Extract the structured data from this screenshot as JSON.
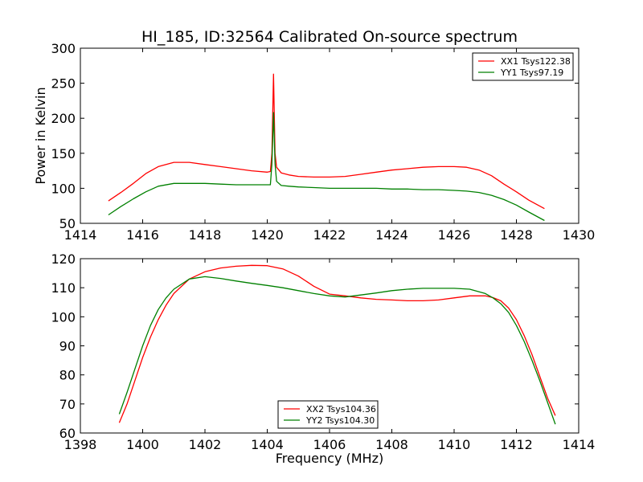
{
  "figure": {
    "title": "HI_185, ID:32564 Calibrated On-source spectrum",
    "xlabel": "Frequency (MHz)"
  },
  "chart_data": [
    {
      "type": "line",
      "title": "HI_185, ID:32564 Calibrated On-source spectrum",
      "xlabel": "",
      "ylabel": "Power in Kelvin",
      "xlim": [
        1414,
        1430
      ],
      "ylim": [
        50,
        300
      ],
      "xticks": [
        1414,
        1416,
        1418,
        1420,
        1422,
        1424,
        1426,
        1428,
        1430
      ],
      "yticks": [
        50,
        100,
        150,
        200,
        250,
        300
      ],
      "grid": false,
      "legend_position": "top-right",
      "series": [
        {
          "name": "XX1 Tsys122.38",
          "color": "#ff0000",
          "x": [
            1414.9,
            1415.3,
            1415.7,
            1416.1,
            1416.5,
            1417.0,
            1417.5,
            1418.0,
            1418.5,
            1419.0,
            1419.5,
            1420.0,
            1420.1,
            1420.15,
            1420.2,
            1420.25,
            1420.3,
            1420.45,
            1420.7,
            1421.0,
            1421.5,
            1422.0,
            1422.5,
            1423.0,
            1423.5,
            1424.0,
            1424.5,
            1425.0,
            1425.5,
            1426.0,
            1426.4,
            1426.8,
            1427.2,
            1427.6,
            1428.0,
            1428.4,
            1428.9
          ],
          "y": [
            82,
            94,
            107,
            121,
            131,
            137,
            137,
            134,
            131,
            128,
            125,
            123,
            124,
            150,
            263,
            150,
            130,
            122,
            119,
            117,
            116,
            116,
            117,
            120,
            123,
            126,
            128,
            130,
            131,
            131,
            130,
            126,
            118,
            106,
            95,
            83,
            71
          ]
        },
        {
          "name": "YY1 Tsys97.19",
          "color": "#008000",
          "x": [
            1414.9,
            1415.3,
            1415.7,
            1416.1,
            1416.5,
            1417.0,
            1417.5,
            1418.0,
            1418.5,
            1419.0,
            1419.5,
            1420.0,
            1420.1,
            1420.15,
            1420.2,
            1420.25,
            1420.3,
            1420.45,
            1420.7,
            1421.0,
            1421.5,
            1422.0,
            1422.5,
            1423.0,
            1423.5,
            1424.0,
            1424.5,
            1425.0,
            1425.5,
            1426.0,
            1426.4,
            1426.8,
            1427.2,
            1427.6,
            1428.0,
            1428.4,
            1428.9
          ],
          "y": [
            62,
            74,
            85,
            95,
            103,
            107,
            107,
            107,
            106,
            105,
            105,
            105,
            105,
            135,
            208,
            135,
            110,
            104,
            103,
            102,
            101,
            100,
            100,
            100,
            100,
            99,
            99,
            98,
            98,
            97,
            96,
            94,
            90,
            84,
            76,
            66,
            54
          ]
        }
      ]
    },
    {
      "type": "line",
      "title": "",
      "xlabel": "Frequency (MHz)",
      "ylabel": "",
      "xlim": [
        1398,
        1414
      ],
      "ylim": [
        60,
        120
      ],
      "xticks": [
        1398,
        1400,
        1402,
        1404,
        1406,
        1408,
        1410,
        1412,
        1414
      ],
      "yticks": [
        60,
        70,
        80,
        90,
        100,
        110,
        120
      ],
      "grid": false,
      "legend_position": "bottom-center",
      "series": [
        {
          "name": "XX2 Tsys104.36",
          "color": "#ff0000",
          "x": [
            1399.25,
            1399.5,
            1399.75,
            1400.0,
            1400.25,
            1400.5,
            1400.75,
            1401.0,
            1401.5,
            1402.0,
            1402.5,
            1403.0,
            1403.5,
            1404.0,
            1404.5,
            1405.0,
            1405.5,
            1406.0,
            1406.5,
            1407.0,
            1407.5,
            1408.0,
            1408.5,
            1409.0,
            1409.5,
            1410.0,
            1410.5,
            1411.0,
            1411.25,
            1411.5,
            1411.75,
            1412.0,
            1412.25,
            1412.5,
            1412.75,
            1413.0,
            1413.25
          ],
          "y": [
            63.5,
            70,
            78,
            86,
            93,
            99,
            104,
            108,
            113,
            115.5,
            116.8,
            117.4,
            117.7,
            117.6,
            116.5,
            114,
            110.5,
            107.8,
            107.2,
            106.5,
            106,
            105.8,
            105.5,
            105.5,
            105.8,
            106.5,
            107.2,
            107.2,
            106.6,
            105.5,
            103,
            99,
            93.5,
            87,
            79.5,
            72,
            66
          ]
        },
        {
          "name": "YY2 Tsys104.30",
          "color": "#008000",
          "x": [
            1399.25,
            1399.5,
            1399.75,
            1400.0,
            1400.25,
            1400.5,
            1400.75,
            1401.0,
            1401.5,
            1402.0,
            1402.5,
            1403.0,
            1403.5,
            1404.0,
            1404.5,
            1405.0,
            1405.5,
            1406.0,
            1406.5,
            1407.0,
            1407.5,
            1408.0,
            1408.5,
            1409.0,
            1409.5,
            1410.0,
            1410.5,
            1411.0,
            1411.25,
            1411.5,
            1411.75,
            1412.0,
            1412.25,
            1412.5,
            1412.75,
            1413.0,
            1413.25
          ],
          "y": [
            66.5,
            74,
            82,
            90,
            97,
            102.5,
            106.5,
            109.5,
            113,
            113.8,
            113.2,
            112.3,
            111.5,
            110.8,
            110,
            109,
            108,
            107.2,
            106.8,
            107.5,
            108.2,
            109,
            109.5,
            109.8,
            109.8,
            109.8,
            109.5,
            108,
            106.5,
            104.5,
            101.5,
            97,
            91.5,
            85,
            78,
            70.5,
            63
          ]
        }
      ]
    }
  ]
}
